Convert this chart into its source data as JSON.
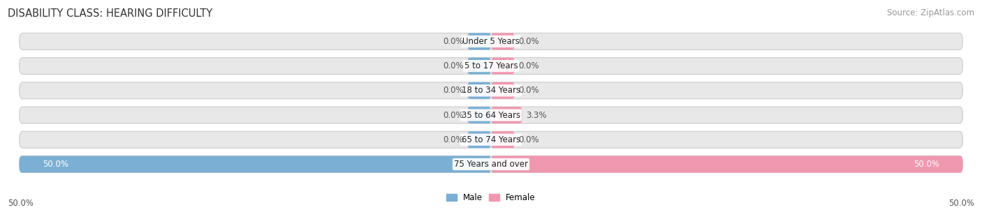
{
  "title": "DISABILITY CLASS: HEARING DIFFICULTY",
  "source": "Source: ZipAtlas.com",
  "categories": [
    "Under 5 Years",
    "5 to 17 Years",
    "18 to 34 Years",
    "35 to 64 Years",
    "65 to 74 Years",
    "75 Years and over"
  ],
  "male_values": [
    0.0,
    0.0,
    0.0,
    0.0,
    0.0,
    50.0
  ],
  "female_values": [
    0.0,
    0.0,
    0.0,
    3.3,
    0.0,
    50.0
  ],
  "male_color": "#7bafd4",
  "female_color": "#f098b0",
  "bar_bg_color": "#e8e8e8",
  "bar_bg_edge_color": "#cccccc",
  "bar_height": 0.68,
  "xlim": 50.0,
  "title_fontsize": 10.5,
  "source_fontsize": 8.5,
  "label_fontsize": 8.5,
  "category_fontsize": 8.5,
  "axis_label_fontsize": 8.5,
  "bg_color": "#ffffff",
  "min_bar_display": 2.5,
  "value_label_color_dark": "#555555",
  "value_label_color_light": "#ffffff"
}
